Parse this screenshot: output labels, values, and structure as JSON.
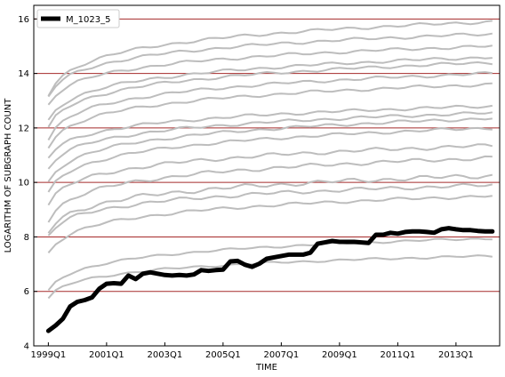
{
  "chart_data": {
    "type": "line",
    "xlabel": "TIME",
    "ylabel": "LOGARITHM OF SUBGRAPH COUNT",
    "x_ticks": [
      "1999Q1",
      "2001Q1",
      "2003Q1",
      "2005Q1",
      "2007Q1",
      "2009Q1",
      "2011Q1",
      "2013Q1"
    ],
    "x_start_quarter": "1999Q1",
    "xlim_quarters": [
      "1998Q3",
      "2014Q3"
    ],
    "ylim": [
      4,
      16.5
    ],
    "y_ticks": [
      4,
      6,
      8,
      10,
      12,
      14,
      16
    ],
    "grid": "horizontal",
    "legend_placement": "top-left",
    "colors": {
      "highlight": "#000000",
      "background_series": "#bdbdbd",
      "grid": "#a52a2a"
    },
    "highlight": {
      "name": "M_1023_5",
      "values": [
        4.55,
        4.75,
        5.0,
        5.45,
        5.62,
        5.68,
        5.78,
        6.1,
        6.28,
        6.3,
        6.28,
        6.58,
        6.45,
        6.65,
        6.7,
        6.65,
        6.6,
        6.58,
        6.6,
        6.58,
        6.62,
        6.78,
        6.75,
        6.78,
        6.8,
        7.1,
        7.12,
        6.98,
        6.9,
        7.02,
        7.2,
        7.25,
        7.3,
        7.35,
        7.35,
        7.35,
        7.42,
        7.75,
        7.8,
        7.85,
        7.82,
        7.82,
        7.82,
        7.8,
        7.78,
        8.08,
        8.08,
        8.15,
        8.12,
        8.18,
        8.2,
        8.2,
        8.18,
        8.15,
        8.28,
        8.32,
        8.28,
        8.25,
        8.25,
        8.22,
        8.2,
        8.2
      ]
    },
    "background_series": [
      {
        "start": 5.75,
        "end": 7.3,
        "wiggle": 0.03
      },
      {
        "start": 6.0,
        "end": 7.95,
        "wiggle": 0.03
      },
      {
        "start": 7.4,
        "end": 9.5,
        "wiggle": 0.04
      },
      {
        "start": 8.05,
        "end": 9.9,
        "wiggle": 0.05
      },
      {
        "start": 8.15,
        "end": 10.25,
        "wiggle": 0.06
      },
      {
        "start": 8.6,
        "end": 10.9,
        "wiggle": 0.05
      },
      {
        "start": 9.2,
        "end": 11.35,
        "wiggle": 0.05
      },
      {
        "start": 9.6,
        "end": 12.0,
        "wiggle": 0.04
      },
      {
        "start": 10.0,
        "end": 12.35,
        "wiggle": 0.04
      },
      {
        "start": 10.5,
        "end": 12.55,
        "wiggle": 0.04
      },
      {
        "start": 10.9,
        "end": 12.8,
        "wiggle": 0.04
      },
      {
        "start": 11.3,
        "end": 13.6,
        "wiggle": 0.04
      },
      {
        "start": 11.6,
        "end": 14.0,
        "wiggle": 0.04
      },
      {
        "start": 12.0,
        "end": 14.4,
        "wiggle": 0.04
      },
      {
        "start": 12.25,
        "end": 14.6,
        "wiggle": 0.04
      },
      {
        "start": 12.85,
        "end": 15.0,
        "wiggle": 0.04
      },
      {
        "start": 13.15,
        "end": 15.45,
        "wiggle": 0.04
      },
      {
        "start": 13.2,
        "end": 15.9,
        "wiggle": 0.04
      }
    ]
  }
}
